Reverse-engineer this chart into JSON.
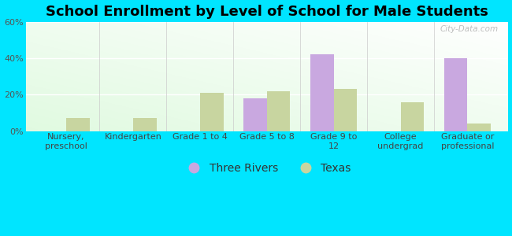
{
  "title": "School Enrollment by Level of School for Male Students",
  "categories": [
    "Nursery,\npreschool",
    "Kindergarten",
    "Grade 1 to 4",
    "Grade 5 to 8",
    "Grade 9 to\n12",
    "College\nundergrad",
    "Graduate or\nprofessional"
  ],
  "three_rivers": [
    0,
    0,
    0,
    18,
    42,
    0,
    40
  ],
  "texas": [
    7,
    7,
    21,
    22,
    23,
    16,
    4
  ],
  "three_rivers_color": "#c9a8e0",
  "texas_color": "#c8d5a0",
  "background_color": "#00e5ff",
  "ylim": [
    0,
    60
  ],
  "yticks": [
    0,
    20,
    40,
    60
  ],
  "ytick_labels": [
    "0%",
    "20%",
    "40%",
    "60%"
  ],
  "bar_width": 0.35,
  "title_fontsize": 13,
  "tick_fontsize": 8,
  "legend_fontsize": 10,
  "watermark": "City-Data.com"
}
